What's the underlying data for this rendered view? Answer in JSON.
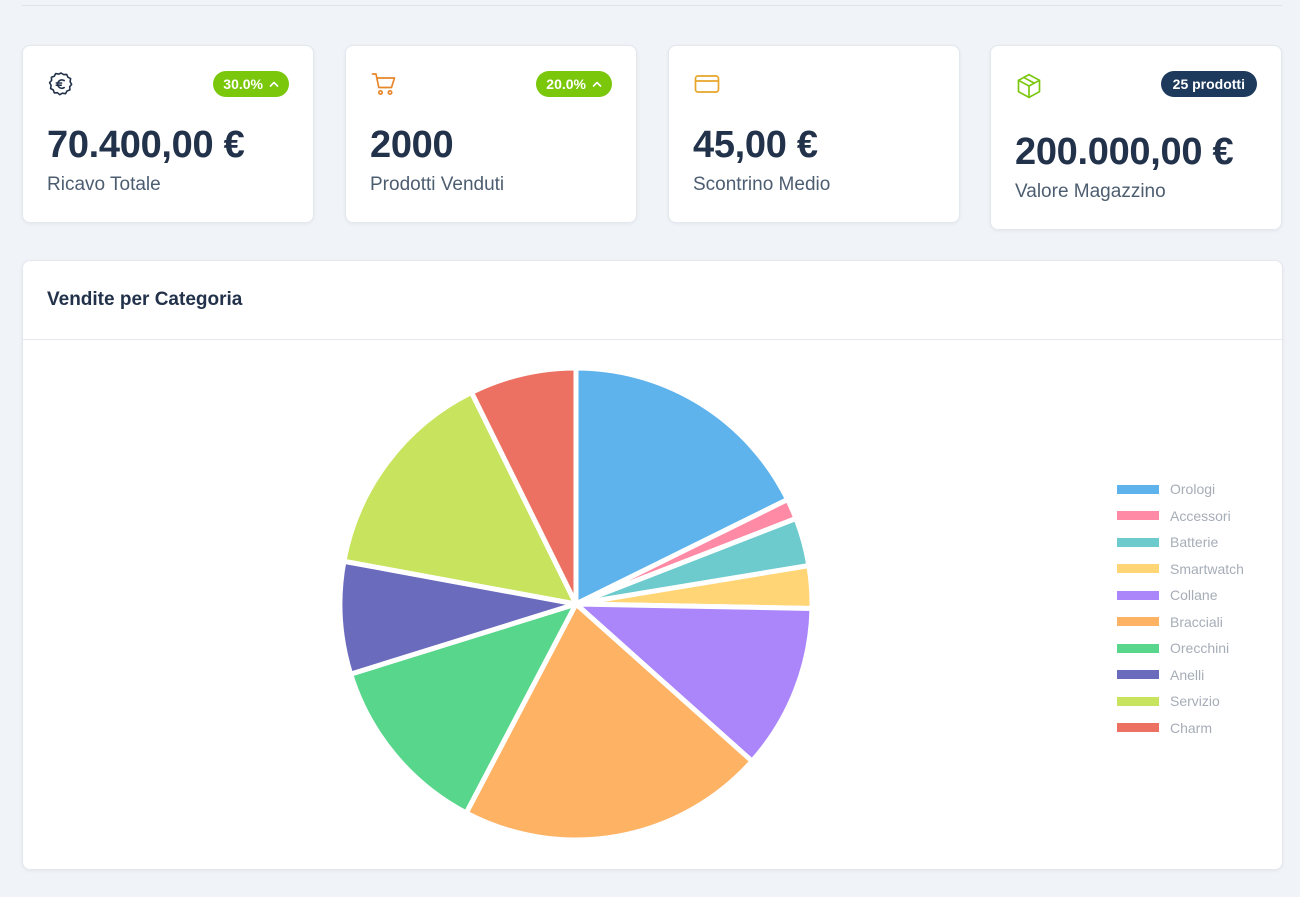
{
  "stats": [
    {
      "icon": "euro-coin-icon",
      "badge": "30.0%",
      "badge_icon": "chevron-up-icon",
      "value": "70.400,00 €",
      "label": "Ricavo Totale"
    },
    {
      "icon": "shopping-cart-icon",
      "badge": "20.0%",
      "badge_icon": "chevron-up-icon",
      "value": "2000",
      "label": "Prodotti Venduti"
    },
    {
      "icon": "credit-card-icon",
      "value": "45,00 €",
      "label": "Scontrino Medio"
    },
    {
      "icon": "package-box-icon",
      "badge": "25 prodotti",
      "value": "200.000,00 €",
      "label": "Valore Magazzino"
    }
  ],
  "colors": {
    "accent_green": "#7ac70c",
    "accent_navy": "#1d3a5c",
    "icon_orange": "#e8862a",
    "icon_gold": "#e8a52a"
  },
  "chart_section": {
    "title": "Vendite per Categoria"
  },
  "chart_data": {
    "type": "pie",
    "title": "",
    "legend_position": "right",
    "series": [
      {
        "name": "Orologi",
        "value": 17.7,
        "color": "#5eb3ec"
      },
      {
        "name": "Accessori",
        "value": 1.4,
        "color": "#ff8aa6"
      },
      {
        "name": "Batterie",
        "value": 3.3,
        "color": "#6ecbcd"
      },
      {
        "name": "Smartwatch",
        "value": 2.9,
        "color": "#ffd575"
      },
      {
        "name": "Collane",
        "value": 11.3,
        "color": "#ab86fb"
      },
      {
        "name": "Bracciali",
        "value": 21.1,
        "color": "#fdb264"
      },
      {
        "name": "Orecchini",
        "value": 12.5,
        "color": "#58d68b"
      },
      {
        "name": "Anelli",
        "value": 7.7,
        "color": "#6a6bbd"
      },
      {
        "name": "Servizio",
        "value": 14.8,
        "color": "#c8e35e"
      },
      {
        "name": "Charm",
        "value": 7.3,
        "color": "#ec7162"
      }
    ]
  }
}
